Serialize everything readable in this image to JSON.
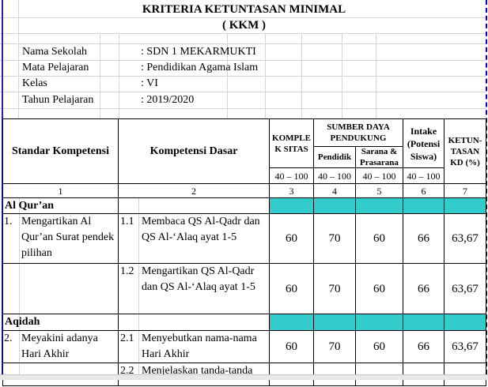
{
  "title": "KRITERIA KETUNTASAN MINIMAL",
  "subtitle": "( KKM )",
  "info": [
    {
      "label": "Nama Sekolah",
      "value": ": SDN 1 MEKARMUKTI"
    },
    {
      "label": "Mata Pelajaran",
      "value": ": Pendidikan Agama Islam"
    },
    {
      "label": "Kelas",
      "value": ": VI"
    },
    {
      "label": "Tahun Pelajaran",
      "value": ": 2019/2020"
    }
  ],
  "headers": {
    "sk": "Standar Kompetensi",
    "kd": "Kompetensi Dasar",
    "kompleksitas": "KOMPLE K SITAS",
    "sumber": "SUMBER DAYA PENDUKUNG",
    "pendidik": "Pendidik",
    "sarana": "Sarana & Prasarana",
    "intake": "Intake (Potensi Siswa)",
    "ketuntasan": "KETUN-TASAN KD (%)",
    "range": "40 – 100",
    "nums": [
      "1",
      "2",
      "3",
      "4",
      "5",
      "6",
      "7"
    ]
  },
  "sections": [
    {
      "name": "Al Qur’an",
      "rows": [
        {
          "sk_no": "1.",
          "sk": "Mengartikan Al Qur’an Surat pendek pilihan",
          "kd_no": "1.1",
          "kd": "Membaca QS Al-Qadr dan QS Al-‘Alaq ayat 1-5",
          "v": [
            "60",
            "70",
            "60",
            "66",
            "63,67"
          ]
        },
        {
          "sk_no": "",
          "sk": "",
          "kd_no": "1.2",
          "kd": "Mengartikan QS Al-Qadr dan QS Al-‘Alaq ayat 1-5",
          "v": [
            "60",
            "70",
            "60",
            "66",
            "63,67"
          ]
        }
      ]
    },
    {
      "name": "Aqidah",
      "rows": [
        {
          "sk_no": "2.",
          "sk": "Meyakini adanya Hari Akhir",
          "kd_no": "2.1",
          "kd": "Menyebutkan nama-nama Hari Akhir",
          "v": [
            "60",
            "70",
            "60",
            "66",
            "63,67"
          ]
        },
        {
          "sk_no": "",
          "sk": "",
          "kd_no": "2.2",
          "kd": "Menjelaskan tanda-tanda",
          "v": [
            "",
            "",
            "",
            "",
            ""
          ]
        }
      ]
    }
  ],
  "colors": {
    "section_fill": "#33cccc",
    "page_break": "#0000cc"
  }
}
